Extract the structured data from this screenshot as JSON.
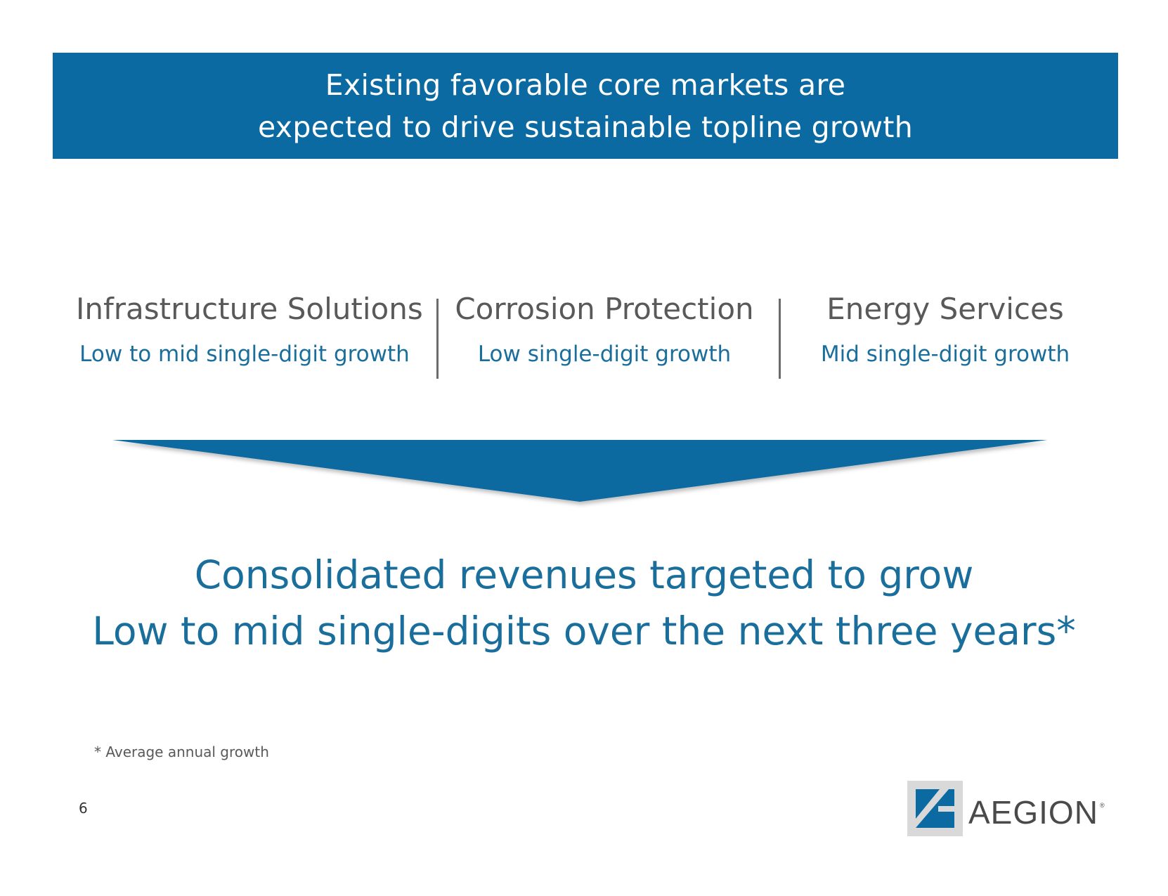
{
  "banner": {
    "line1": "Existing favorable core markets are",
    "line2": "expected to drive sustainable topline growth"
  },
  "segments": [
    {
      "title": "Infrastructure Solutions",
      "growth": "Low to mid single-digit growth"
    },
    {
      "title": "Corrosion Protection",
      "growth": "Low single-digit growth"
    },
    {
      "title": "Energy Services",
      "growth": "Mid single-digit growth"
    }
  ],
  "headline": {
    "line1": "Consolidated revenues targeted to grow",
    "line2": "Low to mid single-digits over the next three years*"
  },
  "footnote": "* Average annual growth",
  "page_number": "6",
  "logo": {
    "text": "AEGION",
    "registered": "®"
  },
  "colors": {
    "brand_blue": "#0b6aa1",
    "subtext_blue": "#1a6e9c",
    "title_gray": "#595959"
  }
}
